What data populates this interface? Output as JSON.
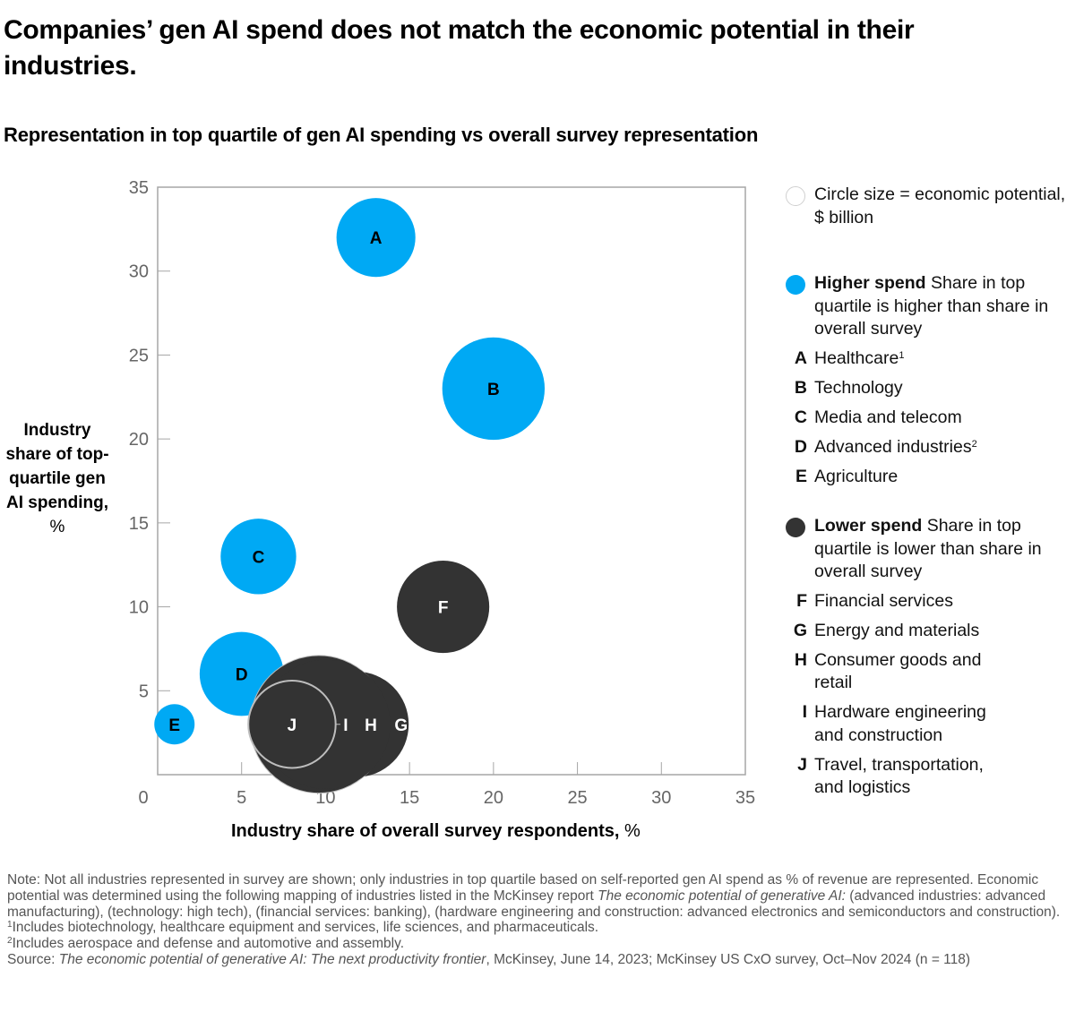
{
  "title": "Companies’ gen AI spend does not match the economic potential in their industries.",
  "subtitle": "Representation in top quartile of gen AI spending vs overall survey representation",
  "colors": {
    "higher": "#00A9F4",
    "lower": "#333333",
    "axis": "#a6a6a6",
    "tick_text": "#666666"
  },
  "legend": {
    "size_note": "Circle size = economic potential, $ billion",
    "higher": {
      "bold": "Higher spend",
      "desc": " Share in top quartile is higher than share in overall survey",
      "items": [
        {
          "letter": "A",
          "label": "Healthcare",
          "sup": "1"
        },
        {
          "letter": "B",
          "label": "Technology",
          "sup": ""
        },
        {
          "letter": "C",
          "label": "Media and telecom",
          "sup": ""
        },
        {
          "letter": "D",
          "label": "Advanced industries",
          "sup": "2"
        },
        {
          "letter": "E",
          "label": "Agriculture",
          "sup": ""
        }
      ]
    },
    "lower": {
      "bold": "Lower spend",
      "desc": " Share in top quartile is lower than share in overall survey",
      "items": [
        {
          "letter": "F",
          "label": "Financial services",
          "sup": ""
        },
        {
          "letter": "G",
          "label": "Energy and materials",
          "sup": ""
        },
        {
          "letter": "H",
          "label": "Consumer goods and retail",
          "sup": ""
        },
        {
          "letter": "I",
          "label": "Hardware engineering and construction",
          "sup": ""
        },
        {
          "letter": "J",
          "label": "Travel, transportation, and logistics",
          "sup": ""
        }
      ]
    }
  },
  "notes": {
    "note_a": "Note: Not all industries represented in survey are shown; only industries in top quartile based on self-reported gen AI spend as % of revenue are represented. Economic potential was determined using the following mapping of industries listed in the McKinsey report ",
    "note_italic": "The economic potential of generative AI:",
    "note_b": " (advanced industries: advanced manufacturing), (technology: high tech), (financial services: banking), (hardware engineering and construction: advanced electronics and semiconductors and construction).",
    "fn1_mark": "1",
    "fn1": "Includes biotechnology, healthcare equipment and services, life sciences, and pharmaceuticals.",
    "fn2_mark": "2",
    "fn2": "Includes aerospace and defense and automotive and assembly.",
    "source_label": "Source: ",
    "source_italic": "The economic potential of generative AI: The next productivity frontier",
    "source_rest": ", McKinsey, June 14, 2023; McKinsey US CxO survey, Oct–Nov 2024 (n = 118)"
  },
  "chart_data": {
    "type": "scatter",
    "subtype": "bubble",
    "title": "Representation in top quartile of gen AI spending vs overall survey representation",
    "xlabel": "Industry share of overall survey respondents,",
    "xlabel_unit": "%",
    "ylabel": "Industry share of top-quartile gen AI spending,",
    "ylabel_unit": "%",
    "xlim": [
      0,
      35
    ],
    "ylim": [
      0,
      35
    ],
    "xticks": [
      0,
      5,
      10,
      15,
      20,
      25,
      30,
      35
    ],
    "yticks": [
      5,
      10,
      15,
      20,
      25,
      30,
      35
    ],
    "grid": false,
    "legend_position": "right",
    "size_meaning": "Circle size = economic potential, $ billion (relative bubble radius in axis units, estimated)",
    "series": [
      {
        "name": "Higher spend",
        "points": [
          {
            "id": "A",
            "industry": "Healthcare",
            "x": 13,
            "y": 32,
            "size": 2.35
          },
          {
            "id": "B",
            "industry": "Technology",
            "x": 20,
            "y": 23,
            "size": 3.05
          },
          {
            "id": "C",
            "industry": "Media and telecom",
            "x": 6,
            "y": 13,
            "size": 2.25
          },
          {
            "id": "D",
            "industry": "Advanced industries",
            "x": 5,
            "y": 6,
            "size": 2.5
          },
          {
            "id": "E",
            "industry": "Agriculture",
            "x": 1,
            "y": 3,
            "size": 1.2
          }
        ]
      },
      {
        "name": "Lower spend",
        "points": [
          {
            "id": "F",
            "industry": "Financial services",
            "x": 17,
            "y": 10,
            "size": 2.75
          },
          {
            "id": "G",
            "industry": "Energy and materials",
            "x": 11.8,
            "y": 3,
            "size": 3.15
          },
          {
            "id": "H",
            "industry": "Consumer goods and retail",
            "x": 9.6,
            "y": 3,
            "size": 4.1
          },
          {
            "id": "I",
            "industry": "Hardware engineering and construction",
            "x": 10,
            "y": 3,
            "size": 3.85
          },
          {
            "id": "J",
            "industry": "Travel, transportation, and logistics",
            "x": 8,
            "y": 3,
            "size": 2.6
          }
        ]
      }
    ],
    "label_offsets_x": {
      "I": 11.2,
      "H": 12.7,
      "G": 14.5
    }
  }
}
